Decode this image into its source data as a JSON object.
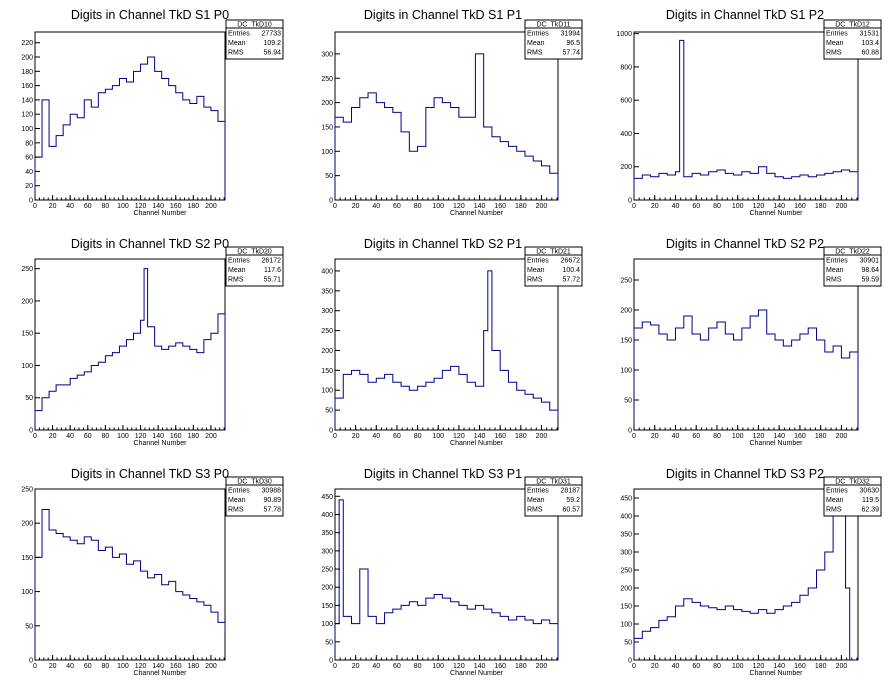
{
  "chart_data": [
    {
      "type": "step",
      "title": "Digits in Channel TkD S1 P0",
      "xlabel": "Channel Number",
      "ylabel": "",
      "xlim": [
        0,
        216
      ],
      "ylim": [
        0,
        235
      ],
      "xticks": [
        0,
        20,
        40,
        60,
        80,
        100,
        120,
        140,
        160,
        180,
        200
      ],
      "yticks": [
        0,
        20,
        40,
        60,
        80,
        100,
        120,
        140,
        160,
        180,
        200,
        220
      ],
      "stats": {
        "name": "DC_TkD10",
        "entries": "27733",
        "mean": "109.2",
        "rms": "56.94"
      },
      "line_color": "#00008b",
      "x": [
        0,
        8,
        16,
        24,
        32,
        40,
        48,
        56,
        64,
        72,
        80,
        88,
        96,
        104,
        112,
        120,
        128,
        136,
        144,
        152,
        160,
        168,
        176,
        184,
        192,
        200,
        208,
        216
      ],
      "y": [
        60,
        140,
        75,
        90,
        105,
        120,
        115,
        140,
        130,
        150,
        155,
        160,
        170,
        165,
        180,
        190,
        200,
        180,
        170,
        160,
        150,
        140,
        135,
        145,
        130,
        125,
        110,
        0
      ]
    },
    {
      "type": "step",
      "title": "Digits in Channel TkD S1 P1",
      "xlabel": "Channel Number",
      "ylabel": "",
      "xlim": [
        0,
        216
      ],
      "ylim": [
        0,
        345
      ],
      "xticks": [
        0,
        20,
        40,
        60,
        80,
        100,
        120,
        140,
        160,
        180,
        200
      ],
      "yticks": [
        0,
        50,
        100,
        150,
        200,
        250,
        300
      ],
      "stats": {
        "name": "DC_TkD11",
        "entries": "31994",
        "mean": "96.5",
        "rms": "57.74"
      },
      "line_color": "#00008b",
      "x": [
        0,
        8,
        16,
        24,
        32,
        40,
        48,
        56,
        64,
        72,
        80,
        88,
        96,
        104,
        112,
        120,
        128,
        136,
        144,
        152,
        160,
        168,
        176,
        184,
        192,
        200,
        208,
        216
      ],
      "y": [
        170,
        160,
        190,
        210,
        220,
        200,
        190,
        180,
        140,
        100,
        110,
        190,
        210,
        200,
        190,
        170,
        170,
        300,
        150,
        130,
        120,
        110,
        100,
        90,
        80,
        70,
        55,
        0
      ]
    },
    {
      "type": "step",
      "title": "Digits in Channel TkD S1 P2",
      "xlabel": "Channel Number",
      "ylabel": "",
      "xlim": [
        0,
        216
      ],
      "ylim": [
        0,
        1010
      ],
      "xticks": [
        0,
        20,
        40,
        60,
        80,
        100,
        120,
        140,
        160,
        180,
        200
      ],
      "yticks": [
        0,
        200,
        400,
        600,
        800,
        1000
      ],
      "stats": {
        "name": "DC_TkD12",
        "entries": "31531",
        "mean": "103.4",
        "rms": "60.88"
      },
      "line_color": "#00008b",
      "x": [
        0,
        8,
        16,
        24,
        32,
        40,
        44,
        48,
        56,
        64,
        72,
        80,
        88,
        96,
        104,
        112,
        120,
        128,
        136,
        144,
        152,
        160,
        168,
        176,
        184,
        192,
        200,
        208,
        216
      ],
      "y": [
        130,
        150,
        140,
        160,
        150,
        170,
        960,
        140,
        160,
        150,
        170,
        180,
        160,
        150,
        170,
        160,
        200,
        160,
        140,
        130,
        140,
        150,
        140,
        150,
        160,
        170,
        180,
        170,
        0
      ]
    },
    {
      "type": "step",
      "title": "Digits in Channel TkD S2 P0",
      "xlabel": "Channel Number",
      "ylabel": "",
      "xlim": [
        0,
        216
      ],
      "ylim": [
        0,
        265
      ],
      "xticks": [
        0,
        20,
        40,
        60,
        80,
        100,
        120,
        140,
        160,
        180,
        200
      ],
      "yticks": [
        0,
        50,
        100,
        150,
        200,
        250
      ],
      "stats": {
        "name": "DC_TkD20",
        "entries": "26172",
        "mean": "117.6",
        "rms": "55.71"
      },
      "line_color": "#00008b",
      "x": [
        0,
        8,
        16,
        24,
        32,
        40,
        48,
        56,
        64,
        72,
        80,
        88,
        96,
        104,
        112,
        120,
        124,
        128,
        136,
        144,
        152,
        160,
        168,
        176,
        184,
        192,
        200,
        208,
        216
      ],
      "y": [
        30,
        50,
        60,
        70,
        70,
        80,
        85,
        90,
        100,
        105,
        115,
        120,
        130,
        140,
        150,
        170,
        250,
        160,
        130,
        125,
        130,
        135,
        130,
        125,
        120,
        140,
        150,
        180,
        0
      ]
    },
    {
      "type": "step",
      "title": "Digits in Channel TkD S2 P1",
      "xlabel": "Channel Number",
      "ylabel": "",
      "xlim": [
        0,
        216
      ],
      "ylim": [
        0,
        430
      ],
      "xticks": [
        0,
        20,
        40,
        60,
        80,
        100,
        120,
        140,
        160,
        180,
        200
      ],
      "yticks": [
        0,
        50,
        100,
        150,
        200,
        250,
        300,
        350,
        400
      ],
      "stats": {
        "name": "DC_TkD21",
        "entries": "26672",
        "mean": "100.4",
        "rms": "57.72"
      },
      "line_color": "#00008b",
      "x": [
        0,
        8,
        16,
        24,
        32,
        40,
        48,
        56,
        64,
        72,
        80,
        88,
        96,
        104,
        112,
        120,
        128,
        136,
        144,
        148,
        152,
        160,
        168,
        176,
        184,
        192,
        200,
        208,
        216
      ],
      "y": [
        80,
        140,
        150,
        140,
        120,
        130,
        140,
        120,
        110,
        100,
        110,
        120,
        130,
        150,
        160,
        140,
        120,
        110,
        250,
        400,
        200,
        150,
        120,
        100,
        90,
        80,
        70,
        50,
        30
      ]
    },
    {
      "type": "step",
      "title": "Digits in Channel TkD S2 P2",
      "xlabel": "Channel Number",
      "ylabel": "",
      "xlim": [
        0,
        216
      ],
      "ylim": [
        0,
        285
      ],
      "xticks": [
        0,
        20,
        40,
        60,
        80,
        100,
        120,
        140,
        160,
        180,
        200
      ],
      "yticks": [
        0,
        50,
        100,
        150,
        200,
        250
      ],
      "stats": {
        "name": "DC_TkD22",
        "entries": "30901",
        "mean": "98.64",
        "rms": "59.59"
      },
      "line_color": "#00008b",
      "x": [
        0,
        8,
        16,
        24,
        32,
        40,
        48,
        56,
        64,
        72,
        80,
        88,
        96,
        104,
        112,
        120,
        128,
        136,
        144,
        152,
        160,
        168,
        176,
        184,
        192,
        200,
        208,
        216
      ],
      "y": [
        170,
        180,
        175,
        160,
        150,
        170,
        190,
        160,
        150,
        170,
        180,
        160,
        150,
        170,
        190,
        200,
        160,
        150,
        140,
        150,
        160,
        170,
        150,
        130,
        140,
        120,
        130,
        0
      ]
    },
    {
      "type": "step",
      "title": "Digits in Channel TkD S3 P0",
      "xlabel": "Channel Number",
      "ylabel": "",
      "xlim": [
        0,
        216
      ],
      "ylim": [
        0,
        250
      ],
      "xticks": [
        0,
        20,
        40,
        60,
        80,
        100,
        120,
        140,
        160,
        180,
        200
      ],
      "yticks": [
        0,
        50,
        100,
        150,
        200,
        250
      ],
      "stats": {
        "name": "DC_TkD30",
        "entries": "30988",
        "mean": "90.89",
        "rms": "57.78"
      },
      "line_color": "#00008b",
      "x": [
        0,
        8,
        16,
        24,
        32,
        40,
        48,
        56,
        64,
        72,
        80,
        88,
        96,
        104,
        112,
        120,
        128,
        136,
        144,
        152,
        160,
        168,
        176,
        184,
        192,
        200,
        208,
        216
      ],
      "y": [
        150,
        220,
        190,
        185,
        180,
        175,
        170,
        180,
        175,
        160,
        165,
        150,
        155,
        140,
        145,
        130,
        120,
        125,
        110,
        115,
        100,
        95,
        90,
        85,
        80,
        70,
        55,
        40
      ]
    },
    {
      "type": "step",
      "title": "Digits in Channel TkD S3 P1",
      "xlabel": "Channel Number",
      "ylabel": "",
      "xlim": [
        0,
        216
      ],
      "ylim": [
        0,
        470
      ],
      "xticks": [
        0,
        20,
        40,
        60,
        80,
        100,
        120,
        140,
        160,
        180,
        200
      ],
      "yticks": [
        0,
        50,
        100,
        150,
        200,
        250,
        300,
        350,
        400,
        450
      ],
      "stats": {
        "name": "DC_TkD31",
        "entries": "28187",
        "mean": "59.2",
        "rms": "60.57"
      },
      "line_color": "#00008b",
      "x": [
        0,
        4,
        8,
        16,
        24,
        32,
        40,
        48,
        56,
        64,
        72,
        80,
        88,
        96,
        104,
        112,
        120,
        128,
        136,
        144,
        152,
        160,
        168,
        176,
        184,
        192,
        200,
        208,
        216
      ],
      "y": [
        100,
        440,
        120,
        100,
        250,
        120,
        100,
        130,
        140,
        150,
        160,
        150,
        170,
        180,
        170,
        160,
        150,
        140,
        150,
        140,
        130,
        120,
        110,
        120,
        110,
        100,
        110,
        100,
        0
      ]
    },
    {
      "type": "step",
      "title": "Digits in Channel TkD S3 P2",
      "xlabel": "Channel Number",
      "ylabel": "",
      "xlim": [
        0,
        216
      ],
      "ylim": [
        0,
        475
      ],
      "xticks": [
        0,
        20,
        40,
        60,
        80,
        100,
        120,
        140,
        160,
        180,
        200
      ],
      "yticks": [
        0,
        50,
        100,
        150,
        200,
        250,
        300,
        350,
        400,
        450
      ],
      "stats": {
        "name": "DC_TkD32",
        "entries": "30630",
        "mean": "119.5",
        "rms": "62.39"
      },
      "line_color": "#00008b",
      "x": [
        0,
        8,
        16,
        24,
        32,
        40,
        48,
        56,
        64,
        72,
        80,
        88,
        96,
        104,
        112,
        120,
        128,
        136,
        144,
        152,
        160,
        168,
        176,
        184,
        192,
        200,
        204,
        208,
        216
      ],
      "y": [
        60,
        80,
        90,
        110,
        120,
        150,
        170,
        160,
        150,
        145,
        140,
        150,
        140,
        135,
        130,
        140,
        130,
        140,
        150,
        160,
        180,
        200,
        250,
        300,
        400,
        460,
        200,
        0,
        0
      ]
    }
  ]
}
